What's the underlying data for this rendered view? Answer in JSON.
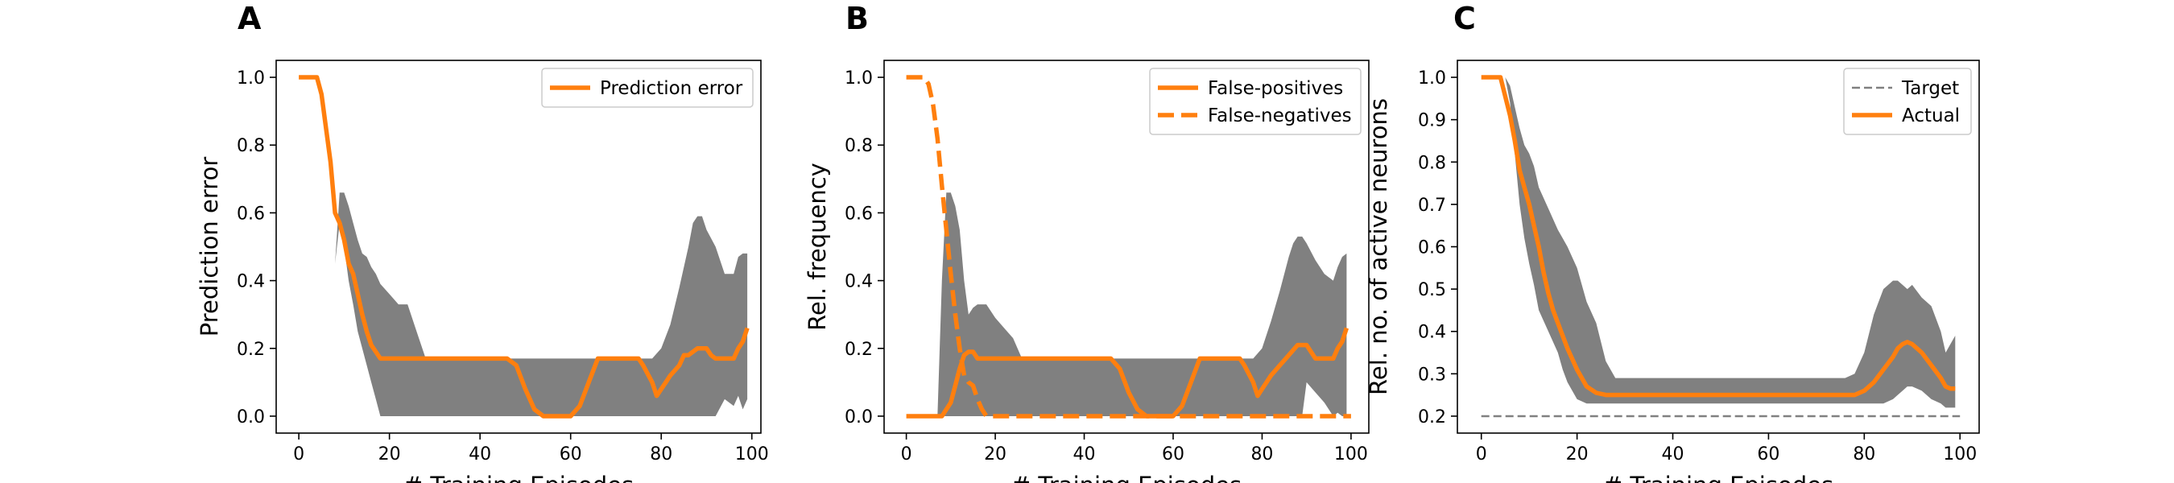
{
  "chart_data": [
    {
      "type": "line",
      "panel_label": "A",
      "xlabel": "# Training Episodes",
      "ylabel": "Prediction error",
      "xlim": [
        -5,
        102
      ],
      "ylim": [
        -0.05,
        1.05
      ],
      "xticks": [
        0,
        20,
        40,
        60,
        80,
        100
      ],
      "yticks": [
        0.0,
        0.2,
        0.4,
        0.6,
        0.8,
        1.0
      ],
      "ytick_labels": [
        "0.0",
        "0.2",
        "0.4",
        "0.6",
        "0.8",
        "1.0"
      ],
      "legend_position": "top-right",
      "colors": {
        "line": "#ff7f0e",
        "band": "#808080"
      },
      "bands": [
        {
          "x": [
            8,
            9,
            10,
            11,
            12,
            13,
            14,
            15,
            16,
            17,
            18,
            20,
            22,
            24,
            26,
            28,
            30,
            40,
            50,
            60,
            70,
            78,
            80,
            82,
            84,
            86,
            87,
            88,
            89,
            90,
            92,
            94,
            96,
            97,
            98,
            99
          ],
          "upper": [
            0.45,
            0.66,
            0.66,
            0.62,
            0.57,
            0.52,
            0.48,
            0.47,
            0.44,
            0.42,
            0.39,
            0.36,
            0.33,
            0.33,
            0.25,
            0.17,
            0.17,
            0.17,
            0.17,
            0.17,
            0.17,
            0.17,
            0.2,
            0.27,
            0.38,
            0.5,
            0.57,
            0.59,
            0.59,
            0.55,
            0.5,
            0.42,
            0.42,
            0.47,
            0.48,
            0.48
          ],
          "lower": [
            0.45,
            0.57,
            0.5,
            0.4,
            0.33,
            0.25,
            0.2,
            0.15,
            0.1,
            0.05,
            0.0,
            0.0,
            0.0,
            0.0,
            0.0,
            0.0,
            0.0,
            0.0,
            0.0,
            0.0,
            0.0,
            0.0,
            0.0,
            0.0,
            0.0,
            0.0,
            0.0,
            0.0,
            0.0,
            0.0,
            0.0,
            0.05,
            0.03,
            0.06,
            0.02,
            0.05
          ]
        }
      ],
      "series": [
        {
          "name": "Prediction error",
          "style": "solid",
          "x": [
            0,
            4,
            5,
            6,
            7,
            8,
            9,
            10,
            11,
            12,
            13,
            14,
            15,
            16,
            18,
            20,
            30,
            40,
            46,
            48,
            50,
            52,
            54,
            60,
            62,
            64,
            66,
            70,
            75,
            76,
            78,
            79,
            80,
            81,
            82,
            84,
            85,
            86,
            88,
            89,
            90,
            91,
            92,
            94,
            96,
            97,
            98,
            99
          ],
          "y": [
            1.0,
            1.0,
            0.95,
            0.85,
            0.75,
            0.6,
            0.57,
            0.52,
            0.45,
            0.42,
            0.36,
            0.3,
            0.25,
            0.21,
            0.17,
            0.17,
            0.17,
            0.17,
            0.17,
            0.15,
            0.08,
            0.02,
            0.0,
            0.0,
            0.03,
            0.1,
            0.17,
            0.17,
            0.17,
            0.15,
            0.1,
            0.06,
            0.08,
            0.1,
            0.12,
            0.15,
            0.18,
            0.18,
            0.2,
            0.2,
            0.2,
            0.18,
            0.17,
            0.17,
            0.17,
            0.2,
            0.22,
            0.26
          ]
        }
      ]
    },
    {
      "type": "line",
      "panel_label": "B",
      "xlabel": "# Training Episodes",
      "ylabel": "Rel. frequency",
      "xlim": [
        -5,
        104
      ],
      "ylim": [
        -0.05,
        1.05
      ],
      "xticks": [
        0,
        20,
        40,
        60,
        80,
        100
      ],
      "yticks": [
        0.0,
        0.2,
        0.4,
        0.6,
        0.8,
        1.0
      ],
      "ytick_labels": [
        "0.0",
        "0.2",
        "0.4",
        "0.6",
        "0.8",
        "1.0"
      ],
      "legend_position": "top-right",
      "colors": {
        "line": "#ff7f0e",
        "band": "#808080"
      },
      "bands": [
        {
          "x": [
            7,
            8,
            9,
            10,
            11,
            12,
            13,
            14,
            15,
            16,
            18,
            20,
            22,
            24,
            26,
            28,
            30,
            40,
            50,
            60,
            70,
            78,
            80,
            82,
            84,
            86,
            87,
            88,
            89,
            90,
            92,
            94,
            96,
            97,
            98,
            99
          ],
          "upper": [
            0.0,
            0.4,
            0.66,
            0.66,
            0.62,
            0.55,
            0.4,
            0.3,
            0.32,
            0.33,
            0.33,
            0.29,
            0.26,
            0.23,
            0.17,
            0.17,
            0.17,
            0.17,
            0.17,
            0.17,
            0.17,
            0.17,
            0.2,
            0.28,
            0.37,
            0.47,
            0.51,
            0.53,
            0.53,
            0.51,
            0.46,
            0.42,
            0.4,
            0.44,
            0.47,
            0.48
          ],
          "lower": [
            0.0,
            0.0,
            0.0,
            0.0,
            0.0,
            0.0,
            0.0,
            0.0,
            0.0,
            0.0,
            0.0,
            0.0,
            0.0,
            0.0,
            0.0,
            0.0,
            0.0,
            0.0,
            0.0,
            0.0,
            0.0,
            0.0,
            0.0,
            0.0,
            0.0,
            0.0,
            0.0,
            0.0,
            0.0,
            0.1,
            0.07,
            0.04,
            0.0,
            0.01,
            0.0,
            0.0
          ]
        }
      ],
      "series": [
        {
          "name": "False-positives",
          "style": "solid",
          "x": [
            0,
            8,
            10,
            11,
            12,
            13,
            14,
            15,
            16,
            18,
            20,
            30,
            40,
            46,
            48,
            50,
            52,
            54,
            60,
            62,
            64,
            66,
            70,
            75,
            76,
            78,
            79,
            80,
            81,
            82,
            84,
            86,
            88,
            89,
            90,
            91,
            92,
            94,
            96,
            97,
            98,
            99
          ],
          "y": [
            0.0,
            0.0,
            0.04,
            0.09,
            0.14,
            0.18,
            0.19,
            0.19,
            0.17,
            0.17,
            0.17,
            0.17,
            0.17,
            0.17,
            0.14,
            0.07,
            0.02,
            0.0,
            0.0,
            0.03,
            0.1,
            0.17,
            0.17,
            0.17,
            0.15,
            0.1,
            0.06,
            0.08,
            0.1,
            0.12,
            0.15,
            0.18,
            0.21,
            0.21,
            0.21,
            0.19,
            0.17,
            0.17,
            0.17,
            0.2,
            0.22,
            0.26
          ]
        },
        {
          "name": "False-negatives",
          "style": "dashed",
          "x": [
            0,
            4,
            5,
            6,
            7,
            8,
            9,
            10,
            11,
            12,
            13,
            14,
            15,
            16,
            17,
            18,
            19,
            20,
            30,
            40,
            60,
            80,
            100
          ],
          "y": [
            1.0,
            1.0,
            0.98,
            0.92,
            0.82,
            0.68,
            0.55,
            0.42,
            0.3,
            0.2,
            0.12,
            0.1,
            0.09,
            0.05,
            0.02,
            0.0,
            0.0,
            0.0,
            0.0,
            0.0,
            0.0,
            0.0,
            0.0
          ]
        }
      ]
    },
    {
      "type": "line",
      "panel_label": "C",
      "xlabel": "# Training Episodes",
      "ylabel": "Rel. no. of active neurons",
      "xlim": [
        -5,
        104
      ],
      "ylim": [
        0.16,
        1.04
      ],
      "xticks": [
        0,
        20,
        40,
        60,
        80,
        100
      ],
      "yticks": [
        0.2,
        0.3,
        0.4,
        0.5,
        0.6,
        0.7,
        0.8,
        0.9,
        1.0
      ],
      "ytick_labels": [
        "0.2",
        "0.3",
        "0.4",
        "0.5",
        "0.6",
        "0.7",
        "0.8",
        "0.9",
        "1.0"
      ],
      "legend_position": "top-right",
      "colors": {
        "line": "#ff7f0e",
        "band": "#808080",
        "target": "#808080"
      },
      "bands": [
        {
          "x": [
            4,
            5,
            6,
            7,
            8,
            9,
            10,
            11,
            12,
            14,
            16,
            17,
            18,
            20,
            22,
            24,
            26,
            28,
            30,
            40,
            60,
            76,
            78,
            80,
            82,
            84,
            86,
            87,
            88,
            89,
            90,
            92,
            94,
            96,
            97,
            98,
            99
          ],
          "upper": [
            1.0,
            1.0,
            0.98,
            0.93,
            0.88,
            0.84,
            0.82,
            0.79,
            0.74,
            0.69,
            0.64,
            0.62,
            0.6,
            0.55,
            0.47,
            0.42,
            0.33,
            0.29,
            0.29,
            0.29,
            0.29,
            0.29,
            0.3,
            0.35,
            0.44,
            0.5,
            0.52,
            0.52,
            0.51,
            0.5,
            0.51,
            0.48,
            0.46,
            0.4,
            0.35,
            0.37,
            0.39
          ],
          "lower": [
            1.0,
            1.0,
            0.94,
            0.82,
            0.7,
            0.62,
            0.56,
            0.51,
            0.45,
            0.4,
            0.35,
            0.31,
            0.28,
            0.24,
            0.23,
            0.23,
            0.23,
            0.23,
            0.23,
            0.23,
            0.23,
            0.23,
            0.23,
            0.23,
            0.23,
            0.23,
            0.24,
            0.25,
            0.26,
            0.27,
            0.27,
            0.26,
            0.24,
            0.23,
            0.22,
            0.22,
            0.22
          ]
        }
      ],
      "series": [
        {
          "name": "Target",
          "style": "dashed",
          "role": "target",
          "x": [
            0,
            100
          ],
          "y": [
            0.2,
            0.2
          ]
        },
        {
          "name": "Actual",
          "style": "solid",
          "x": [
            0,
            4,
            6,
            7,
            8,
            9,
            10,
            11,
            12,
            13,
            14,
            15,
            16,
            18,
            20,
            22,
            24,
            26,
            30,
            40,
            60,
            76,
            78,
            80,
            82,
            84,
            86,
            87,
            88,
            89,
            90,
            92,
            94,
            96,
            97,
            98,
            99
          ],
          "y": [
            1.0,
            1.0,
            0.91,
            0.85,
            0.78,
            0.74,
            0.7,
            0.65,
            0.6,
            0.54,
            0.49,
            0.45,
            0.42,
            0.36,
            0.31,
            0.27,
            0.255,
            0.25,
            0.25,
            0.25,
            0.25,
            0.25,
            0.25,
            0.26,
            0.28,
            0.31,
            0.34,
            0.36,
            0.37,
            0.375,
            0.37,
            0.35,
            0.32,
            0.29,
            0.27,
            0.265,
            0.265
          ]
        }
      ]
    }
  ]
}
